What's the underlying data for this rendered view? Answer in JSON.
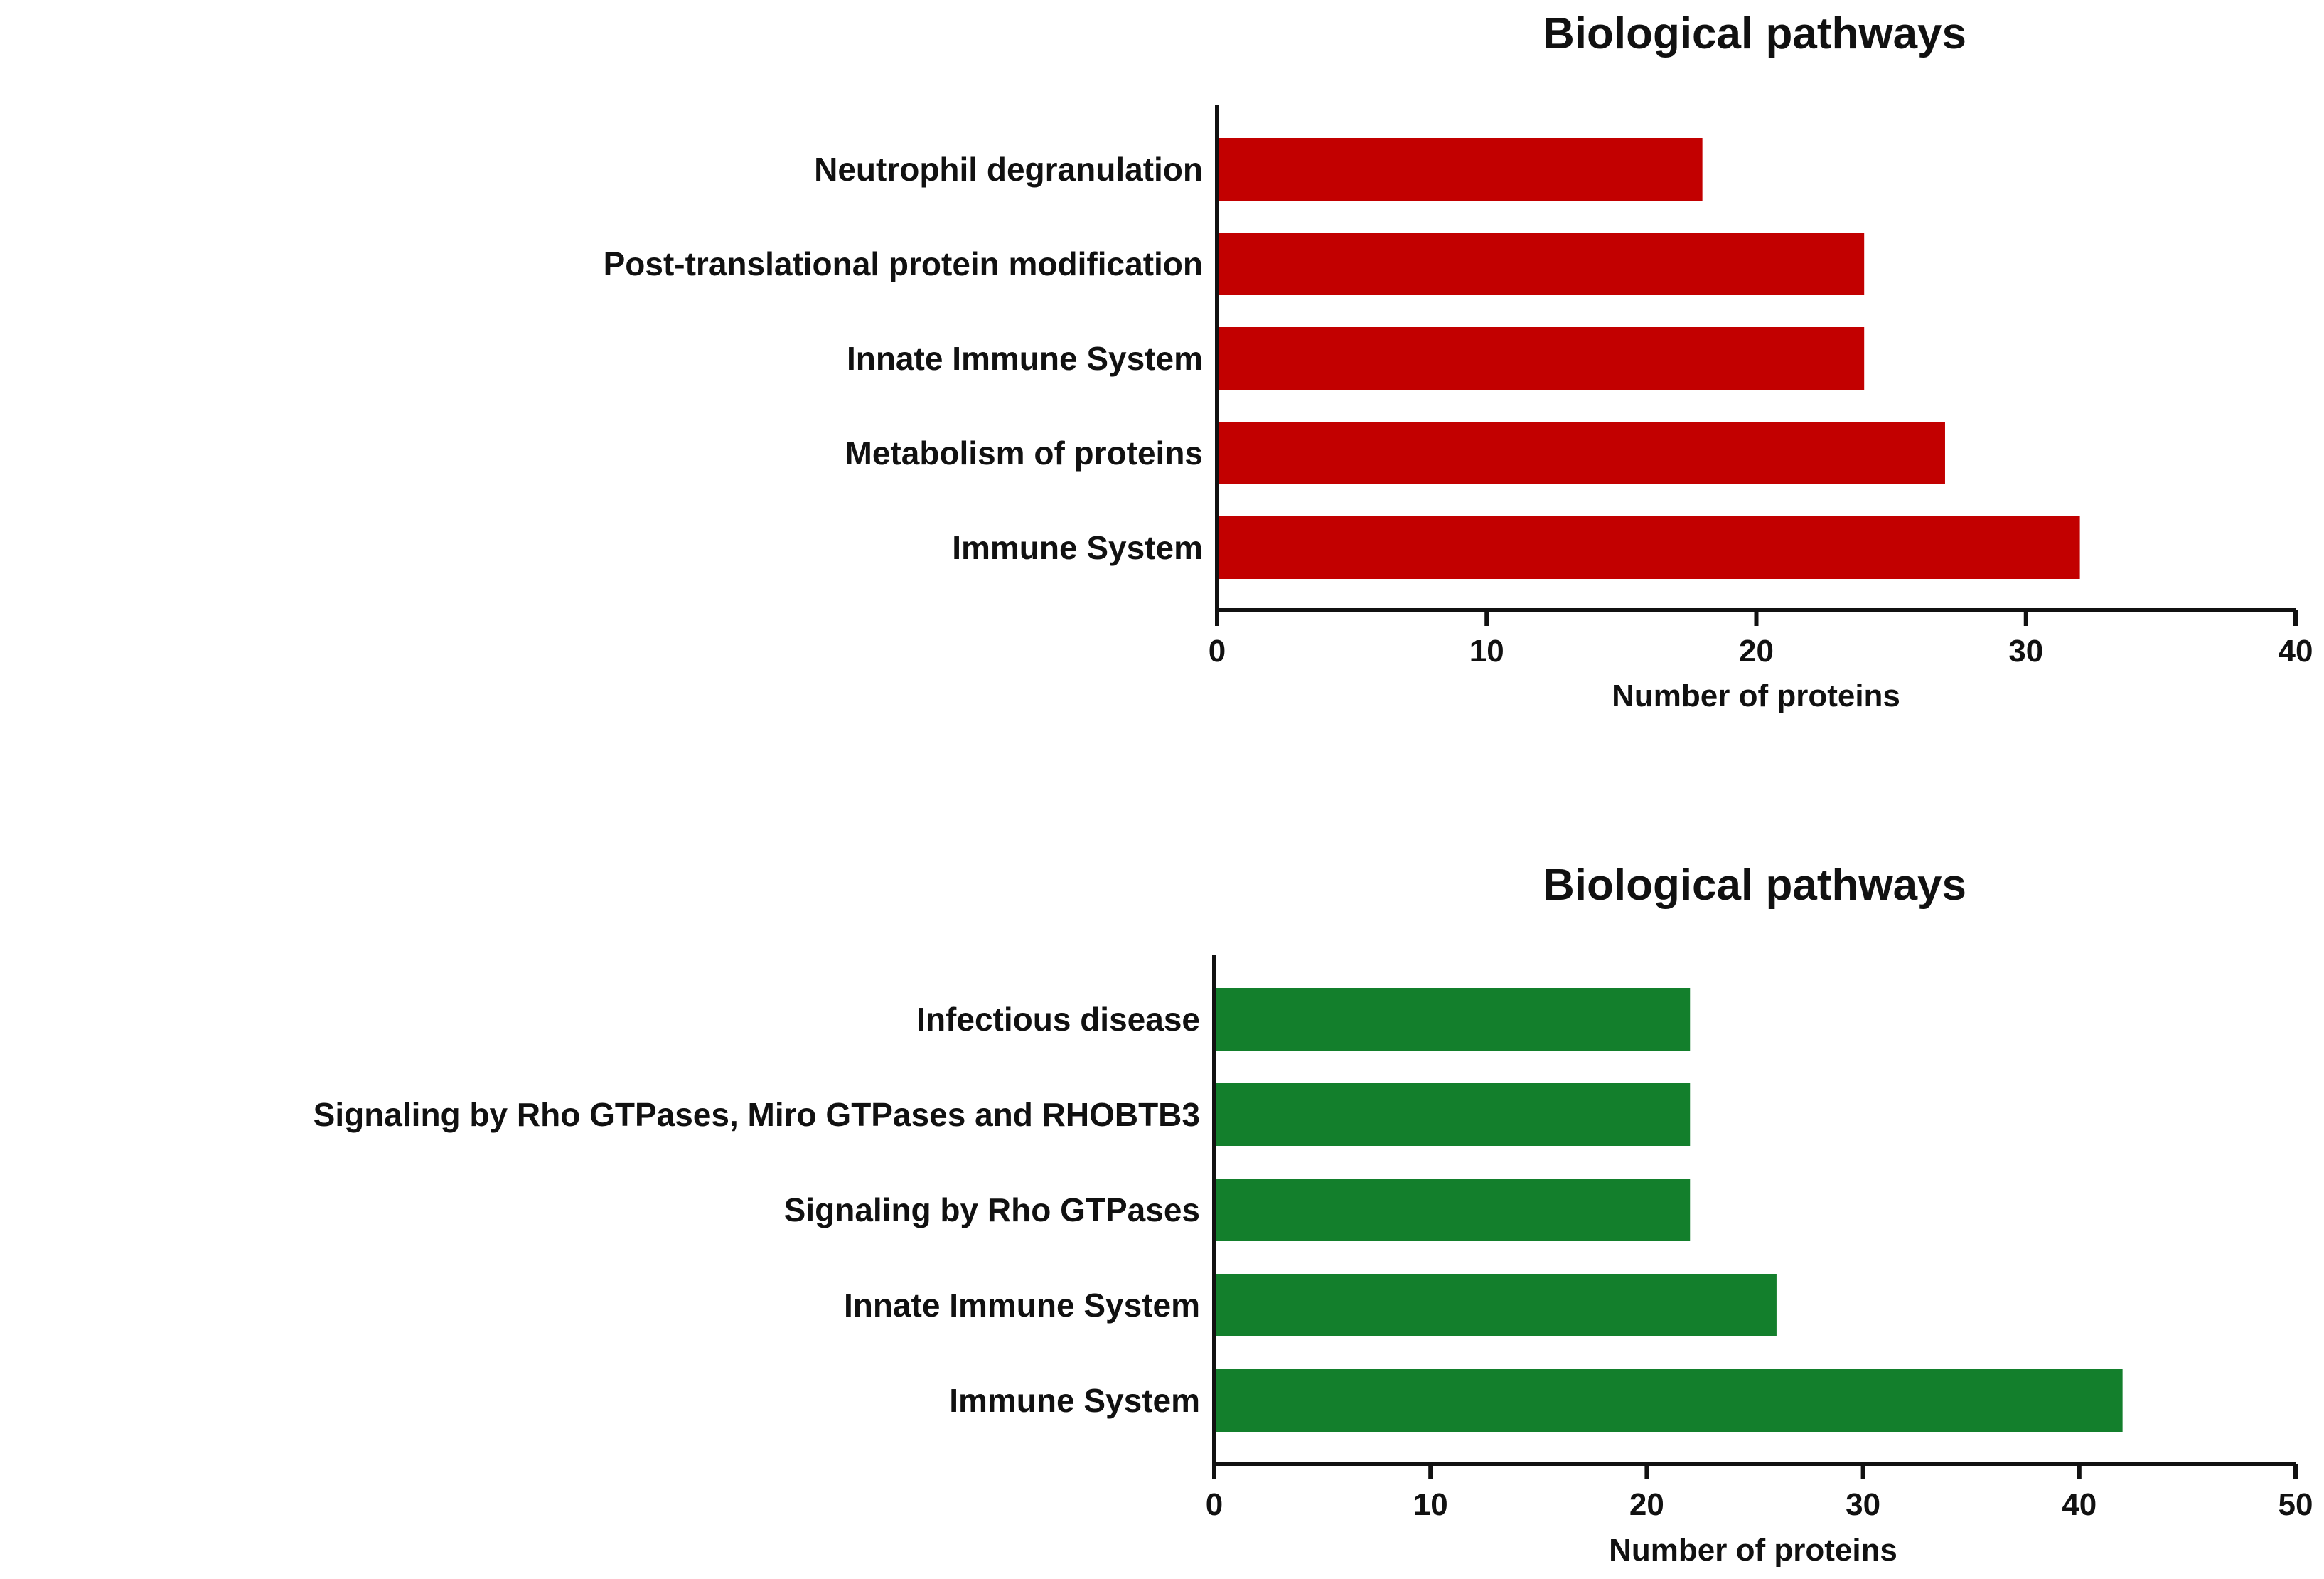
{
  "chart_data": [
    {
      "type": "bar",
      "orientation": "horizontal",
      "title": "Biological pathways",
      "xlabel": "Number of proteins",
      "ylabel": "",
      "xlim": [
        0,
        40
      ],
      "xticks": [
        "0",
        "10",
        "20",
        "30",
        "40"
      ],
      "color": "#c20000",
      "grid": false,
      "categories": [
        "Neutrophil degranulation",
        "Post-translational protein modification",
        "Innate Immune System",
        "Metabolism of proteins",
        "Immune System"
      ],
      "values": [
        18,
        24,
        24,
        27,
        32
      ]
    },
    {
      "type": "bar",
      "orientation": "horizontal",
      "title": "Biological pathways",
      "xlabel": "Number of proteins",
      "ylabel": "",
      "xlim": [
        0,
        50
      ],
      "xticks": [
        "0",
        "10",
        "20",
        "30",
        "40",
        "50"
      ],
      "color": "#137f2c",
      "grid": false,
      "categories": [
        "Infectious disease",
        "Signaling by Rho GTPases, Miro GTPases and RHOBTB3",
        "Signaling by Rho GTPases",
        "Innate Immune System",
        "Immune System"
      ],
      "values": [
        22,
        22,
        22,
        26,
        42
      ]
    }
  ]
}
